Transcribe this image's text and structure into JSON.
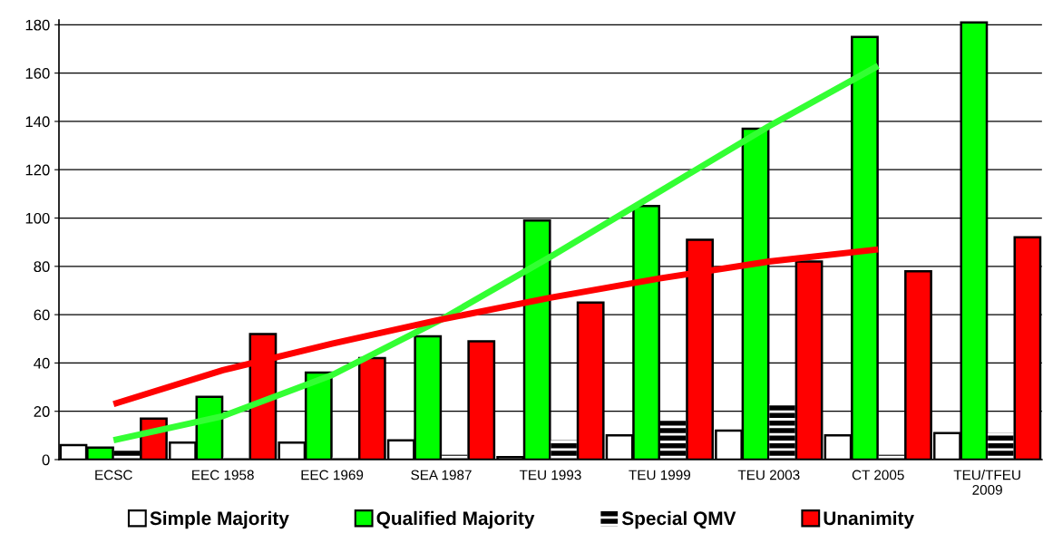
{
  "chart_data": {
    "type": "bar",
    "categories": [
      "ECSC",
      "EEC 1958",
      "EEC 1969",
      "SEA 1987",
      "TEU 1993",
      "TEU 1999",
      "TEU 2003",
      "CT 2005",
      "TEU/TFEU\n2009"
    ],
    "series": [
      {
        "name": "Simple Majority",
        "color": "#ffffff",
        "values": [
          6,
          7,
          7,
          8,
          1,
          10,
          12,
          10,
          11
        ]
      },
      {
        "name": "Qualified Majority",
        "color": "#00ff00",
        "values": [
          5,
          26,
          36,
          51,
          99,
          105,
          137,
          175,
          181
        ]
      },
      {
        "name": "Special QMV",
        "color": "#000000",
        "values": [
          4,
          1,
          1,
          2,
          8,
          16,
          23,
          2,
          11
        ]
      },
      {
        "name": "Unanimity",
        "color": "#ff0000",
        "values": [
          17,
          52,
          42,
          49,
          65,
          91,
          82,
          78,
          92
        ]
      },
      {
        "type": "line",
        "color": "#33ff33",
        "values": [
          8,
          18,
          35,
          58,
          84,
          111,
          138,
          163,
          null
        ]
      },
      {
        "type": "line",
        "color": "#ff0000",
        "values": [
          23,
          37,
          48,
          58,
          67,
          75,
          82,
          87,
          null
        ]
      }
    ],
    "ylim": [
      0,
      182
    ],
    "yticks": [
      0,
      20,
      40,
      60,
      80,
      100,
      120,
      140,
      160,
      180
    ],
    "grid": "y",
    "legend": "bottom"
  }
}
